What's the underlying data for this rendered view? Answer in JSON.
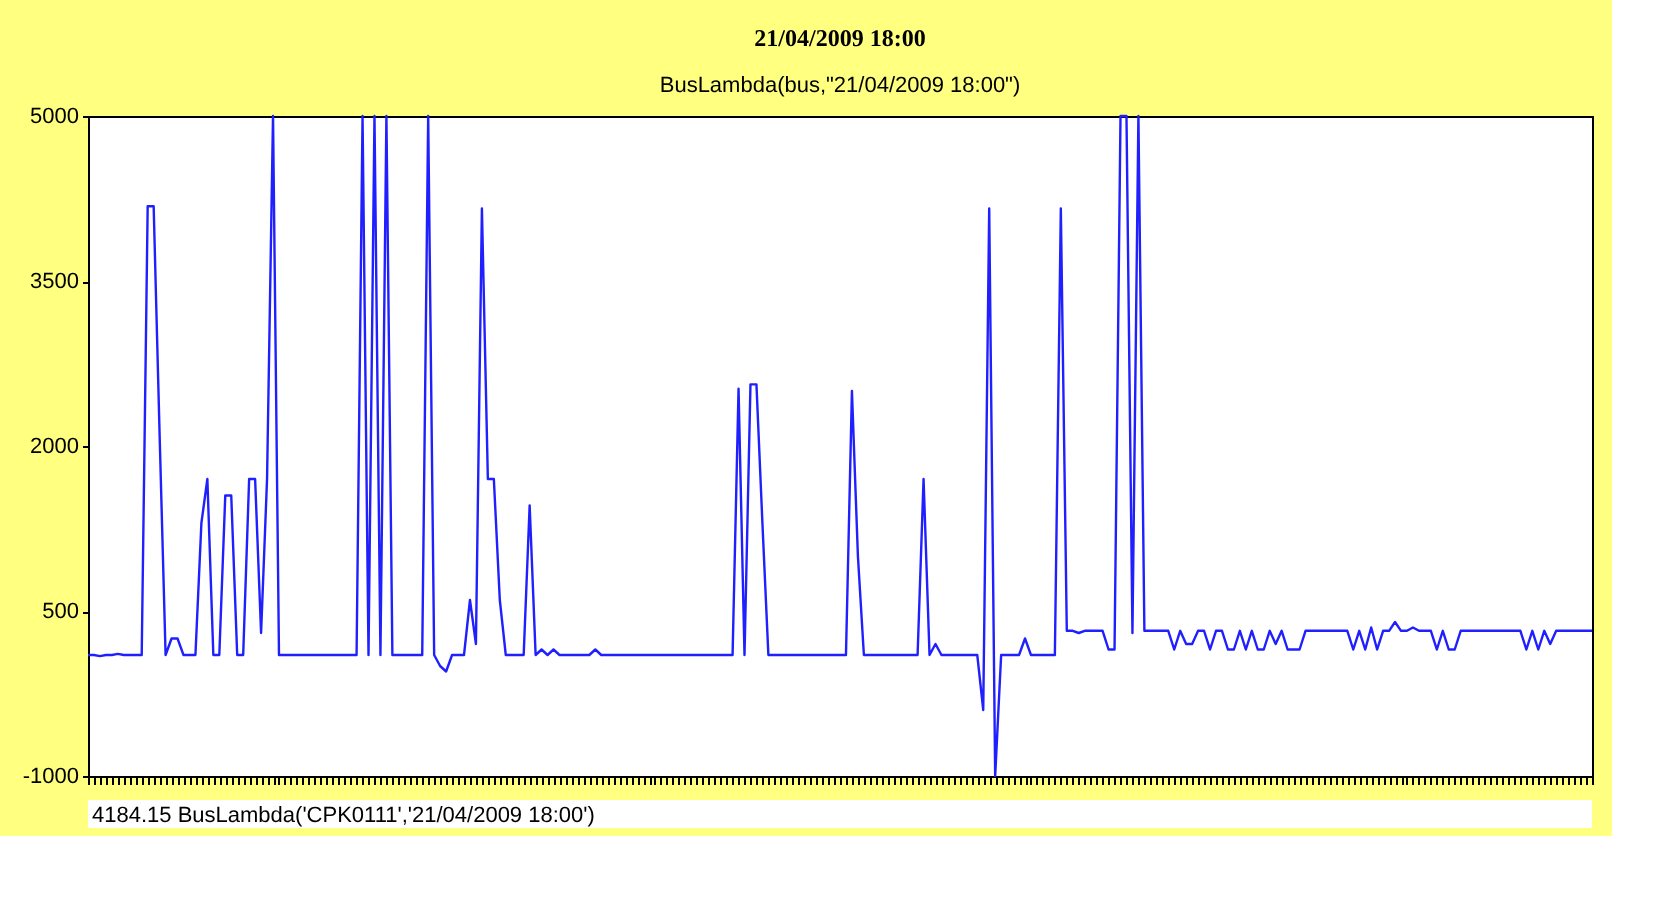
{
  "chart_data": {
    "type": "line",
    "title": "BusLambda(bus,\"21/04/2009 18:00\")",
    "annotations": [
      "21/04/2009 18:00",
      "4184.15    BusLambda('CPK0111','21/04/2009 18:00')"
    ],
    "color": "#2020ff",
    "categories": [
      null,
      null,
      null,
      null,
      null,
      null,
      null,
      null,
      null,
      null,
      null,
      null,
      null,
      null,
      null,
      null,
      null,
      null,
      null,
      null,
      null,
      null,
      null,
      null,
      null,
      null,
      null,
      null,
      null,
      null,
      null,
      null,
      null,
      null,
      null,
      null,
      null,
      null,
      null,
      null,
      null,
      null,
      null,
      null,
      null,
      null,
      null,
      null,
      null,
      null,
      null,
      null,
      null,
      null,
      null,
      null,
      null,
      null,
      null,
      null,
      null,
      null,
      null,
      null,
      null,
      null,
      null,
      null,
      null,
      null,
      null,
      null,
      null,
      null,
      null,
      null,
      null,
      null,
      null,
      null,
      null,
      null,
      null,
      null,
      null,
      null,
      null,
      null,
      null,
      null,
      null,
      null,
      null,
      null,
      null,
      null,
      null,
      null,
      null,
      null,
      null,
      null,
      null,
      null,
      null,
      null,
      null,
      null,
      null,
      null,
      null,
      null,
      null,
      null,
      null,
      null,
      null,
      null,
      null,
      null,
      null,
      null,
      null,
      null,
      null,
      null,
      null,
      null,
      null,
      null,
      null,
      null,
      null,
      null,
      null,
      null,
      null,
      null,
      null,
      null,
      null,
      null,
      null,
      null,
      null,
      null,
      null,
      null,
      null,
      null,
      null,
      null,
      null,
      null,
      null,
      null,
      null,
      null,
      null,
      null,
      null,
      null,
      null,
      null,
      null,
      null,
      null,
      null,
      null,
      null,
      null,
      null,
      null,
      null,
      null,
      null,
      null,
      null,
      null,
      null,
      null,
      null,
      null,
      null,
      null,
      null,
      null,
      null,
      null,
      null,
      null,
      null,
      null,
      null,
      null,
      null,
      null,
      null,
      null,
      null,
      null,
      null,
      null,
      null,
      null,
      null,
      null,
      null,
      null,
      null,
      null,
      null,
      null,
      null,
      null,
      null,
      null,
      null,
      null,
      null,
      null,
      null,
      null,
      null,
      null,
      null,
      null,
      null,
      null,
      null,
      null,
      null,
      null,
      null,
      null,
      null,
      null,
      null,
      null,
      null,
      null,
      null,
      null,
      null,
      null,
      null,
      null,
      null,
      null,
      null,
      null,
      null,
      null
    ],
    "values": [
      100,
      100,
      90,
      100,
      100,
      110,
      100,
      100,
      100,
      100,
      4180,
      4180,
      2100,
      100,
      250,
      250,
      100,
      100,
      100,
      1300,
      1700,
      100,
      100,
      1550,
      1550,
      100,
      100,
      1700,
      1700,
      300,
      1700,
      5000,
      100,
      100,
      100,
      100,
      100,
      100,
      100,
      100,
      100,
      100,
      100,
      100,
      100,
      100,
      5000,
      100,
      5000,
      100,
      5000,
      100,
      100,
      100,
      100,
      100,
      100,
      5000,
      100,
      0,
      -50,
      100,
      100,
      100,
      600,
      200,
      4160,
      1700,
      1700,
      600,
      100,
      100,
      100,
      100,
      1460,
      100,
      150,
      100,
      150,
      100,
      100,
      100,
      100,
      100,
      100,
      150,
      100,
      100,
      100,
      100,
      100,
      100,
      100,
      100,
      100,
      100,
      100,
      100,
      100,
      100,
      100,
      100,
      100,
      100,
      100,
      100,
      100,
      100,
      100,
      2520,
      100,
      2560,
      2560,
      1300,
      100,
      100,
      100,
      100,
      100,
      100,
      100,
      100,
      100,
      100,
      100,
      100,
      100,
      100,
      2500,
      1000,
      100,
      100,
      100,
      100,
      100,
      100,
      100,
      100,
      100,
      100,
      1700,
      100,
      200,
      100,
      100,
      100,
      100,
      100,
      100,
      100,
      -400,
      4160,
      -1000,
      100,
      100,
      100,
      100,
      250,
      100,
      100,
      100,
      100,
      100,
      4160,
      320,
      320,
      300,
      320,
      320,
      320,
      320,
      150,
      150,
      5000,
      5000,
      300,
      5000,
      320,
      320,
      320,
      320,
      320,
      150,
      320,
      200,
      200,
      320,
      320,
      150,
      320,
      320,
      150,
      150,
      320,
      150,
      320,
      150,
      150,
      320,
      200,
      320,
      150,
      150,
      150,
      320,
      320,
      320,
      320,
      320,
      320,
      320,
      320,
      150,
      320,
      150,
      350,
      150,
      320,
      320,
      400,
      320,
      320,
      350,
      320,
      320,
      320,
      150,
      320,
      150,
      150,
      320,
      320,
      320,
      320,
      320,
      320,
      320,
      320,
      320,
      320,
      320,
      150,
      320,
      150,
      320,
      200,
      320,
      320,
      320,
      320,
      320,
      320,
      320
    ],
    "ylim": [
      -1000,
      5000
    ],
    "yticks": [
      -1000,
      500,
      2000,
      3500,
      5000
    ],
    "grid": false,
    "tick_labels": "y"
  }
}
